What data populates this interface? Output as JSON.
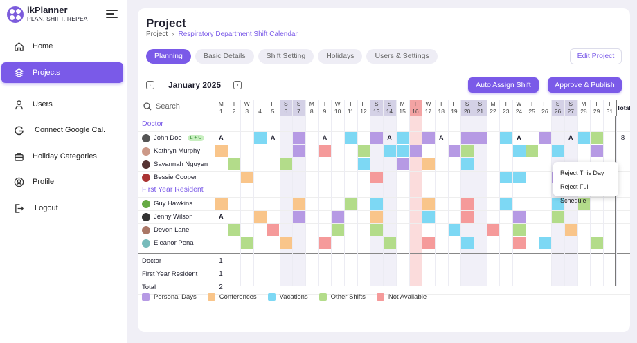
{
  "brand": {
    "name": "ikPlanner",
    "tagline": "PLAN. SHIFT. REPEAT"
  },
  "nav": [
    {
      "label": "Home",
      "icon": "home-icon"
    },
    {
      "label": "Projects",
      "icon": "layers-icon",
      "active": true
    },
    {
      "label": "Users",
      "icon": "user-icon"
    },
    {
      "label": "Connect Google Cal.",
      "icon": "google-icon"
    },
    {
      "label": "Holiday Categories",
      "icon": "briefcase-icon"
    },
    {
      "label": "Profile",
      "icon": "profile-icon"
    },
    {
      "label": "Logout",
      "icon": "logout-icon"
    }
  ],
  "page": {
    "title": "Project",
    "breadcrumb": [
      "Project",
      "Respiratory Department Shift Calendar"
    ]
  },
  "tabs": [
    "Planning",
    "Basic Details",
    "Shift Setting",
    "Holidays",
    "Users & Settings"
  ],
  "active_tab": "Planning",
  "edit_button": "Edit Project",
  "month": "January 2025",
  "buttons": {
    "auto_assign": "Auto Assign Shift",
    "approve": "Approve & Publish"
  },
  "search_placeholder": "Search",
  "days": [
    {
      "d": "M",
      "n": "1"
    },
    {
      "d": "T",
      "n": "2"
    },
    {
      "d": "W",
      "n": "3"
    },
    {
      "d": "T",
      "n": "4"
    },
    {
      "d": "F",
      "n": "5"
    },
    {
      "d": "S",
      "n": "6",
      "we": true
    },
    {
      "d": "S",
      "n": "7",
      "we": true
    },
    {
      "d": "M",
      "n": "8"
    },
    {
      "d": "T",
      "n": "9"
    },
    {
      "d": "W",
      "n": "10"
    },
    {
      "d": "T",
      "n": "11"
    },
    {
      "d": "F",
      "n": "12"
    },
    {
      "d": "S",
      "n": "13",
      "we": true
    },
    {
      "d": "S",
      "n": "14",
      "we": true
    },
    {
      "d": "M",
      "n": "15"
    },
    {
      "d": "T",
      "n": "16",
      "hol": true
    },
    {
      "d": "W",
      "n": "17"
    },
    {
      "d": "T",
      "n": "18"
    },
    {
      "d": "F",
      "n": "19"
    },
    {
      "d": "S",
      "n": "20",
      "we": true
    },
    {
      "d": "S",
      "n": "21",
      "we": true
    },
    {
      "d": "M",
      "n": "22"
    },
    {
      "d": "T",
      "n": "23"
    },
    {
      "d": "W",
      "n": "24"
    },
    {
      "d": "T",
      "n": "25"
    },
    {
      "d": "F",
      "n": "26"
    },
    {
      "d": "S",
      "n": "26",
      "we": true
    },
    {
      "d": "S",
      "n": "27",
      "we": true
    },
    {
      "d": "M",
      "n": "28"
    },
    {
      "d": "T",
      "n": "29"
    },
    {
      "d": "T",
      "n": "31"
    }
  ],
  "total_header": "Total",
  "colors": {
    "P": "#b69ae4",
    "C": "#f9c58a",
    "V": "#7dd8f4",
    "O": "#b3dc8a",
    "N": "#f59a9a",
    "weekend": "#e6e4f2",
    "holiday": "#f7b2b2",
    "accent": "#7a5ae8"
  },
  "groups": [
    {
      "name": "Doctor",
      "rows": [
        {
          "name": "John Doe",
          "badge": "L + U",
          "avatar": "#555",
          "cells": "A..VA.P.A.V.PAV.PA.PP.VA.P.AVO.",
          "total": "8"
        },
        {
          "name": "Kathryn Murphy",
          "avatar": "#c98",
          "cells": "C.....P.N..O.VVP..PO...VO.V..P",
          "total": ""
        },
        {
          "name": "Savannah Nguyen",
          "avatar": "#533",
          "cells": ".O...O.....V..P.C..V..........",
          "total": ""
        },
        {
          "name": "Bessie Cooper",
          "avatar": "#a33",
          "cells": "..C.........N.........VV..P...",
          "total": ""
        }
      ]
    },
    {
      "name": "First Year Resident",
      "rows": [
        {
          "name": "Guy Hawkins",
          "avatar": "#6a4",
          "cells": "C.....C...O.V...C..N..V...V.O.",
          "total": ""
        },
        {
          "name": "Jenny Wilson",
          "avatar": "#333",
          "cells": "A..C..P..P..C...V..N...P..O...",
          "total": ""
        },
        {
          "name": "Devon Lane",
          "avatar": "#a76",
          "cells": ".O..N....O..O.....V..N.O...C..",
          "total": ""
        },
        {
          "name": "Eleanor Pena",
          "avatar": "#7bb",
          "cells": "..O..C..N....O..N..V...N.V...O.",
          "total": ""
        }
      ]
    }
  ],
  "summary": [
    {
      "label": "Doctor",
      "value": "1"
    },
    {
      "label": "First Year Resident",
      "value": "1"
    },
    {
      "label": "Total",
      "value": "2"
    }
  ],
  "legend": [
    {
      "label": "Personal Days",
      "color": "#b69ae4"
    },
    {
      "label": "Conferences",
      "color": "#f9c58a"
    },
    {
      "label": "Vacations",
      "color": "#7dd8f4"
    },
    {
      "label": "Other Shifts",
      "color": "#b3dc8a"
    },
    {
      "label": "Not Available",
      "color": "#f59a9a"
    }
  ],
  "context_menu": [
    "Reject This Day",
    "Reject Full Schedule"
  ]
}
